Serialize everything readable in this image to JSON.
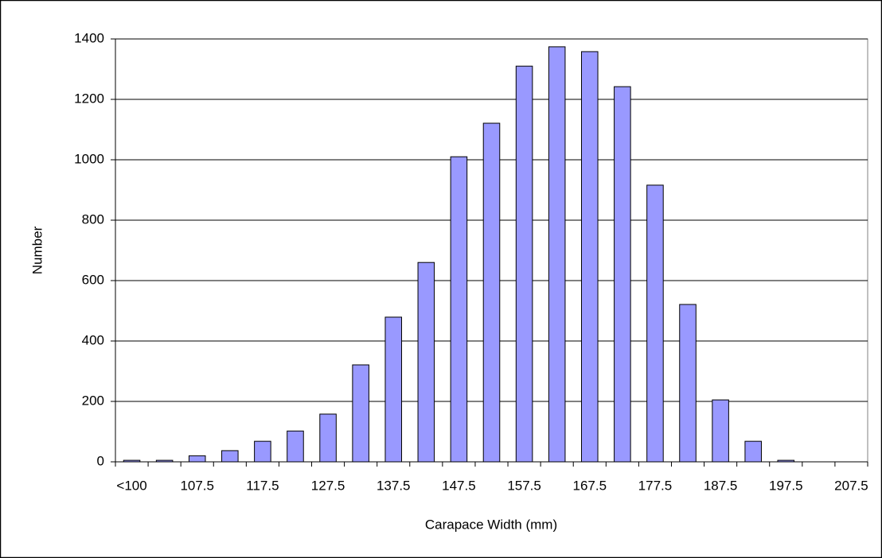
{
  "chart_data": {
    "type": "bar",
    "x_label": "Carapace Width (mm)",
    "y_label": "Number",
    "categories": [
      "<100",
      null,
      "107.5",
      null,
      "117.5",
      null,
      "127.5",
      null,
      "137.5",
      null,
      "147.5",
      null,
      "157.5",
      null,
      "167.5",
      null,
      "177.5",
      null,
      "187.5",
      null,
      "197.5",
      null,
      "207.5"
    ],
    "values": [
      5,
      5,
      20,
      37,
      68,
      102,
      158,
      321,
      479,
      660,
      1010,
      1121,
      1310,
      1374,
      1358,
      1242,
      916,
      521,
      205,
      68,
      5,
      0,
      0
    ],
    "color": "#9999ff",
    "ylim": [
      0,
      1400
    ],
    "yticks": [
      0,
      200,
      400,
      600,
      800,
      1000,
      1200,
      1400
    ],
    "grid": true
  }
}
